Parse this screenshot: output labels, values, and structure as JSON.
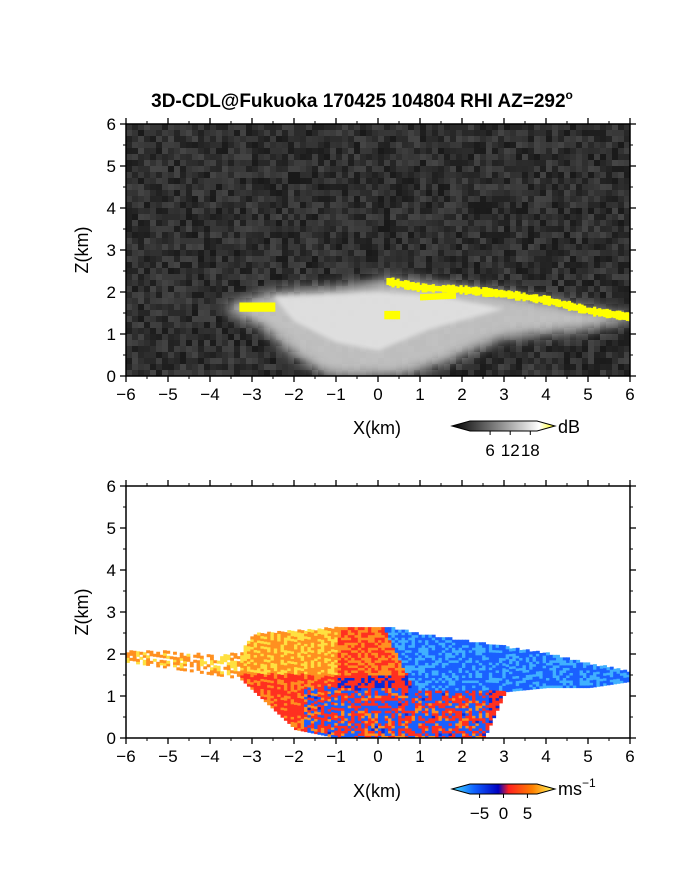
{
  "figure": {
    "title": "3D-CDL@Fukuoka 170425 104804 RHI AZ=292",
    "title_superscript": "o"
  },
  "chart_data": [
    {
      "type": "heatmap",
      "name": "backscatter",
      "xlabel": "X(km)",
      "ylabel": "Z(km)",
      "xlim": [
        -6,
        6
      ],
      "ylim": [
        0,
        6
      ],
      "xticks": [
        "−6",
        "−5",
        "−4",
        "−3",
        "−2",
        "−1",
        "0",
        "1",
        "2",
        "3",
        "4",
        "5",
        "6"
      ],
      "yticks": [
        "0",
        "1",
        "2",
        "3",
        "4",
        "5",
        "6"
      ],
      "grid": false,
      "colorbar": {
        "unit": "dB",
        "ticks": [
          6,
          12,
          18
        ],
        "tick_labels": [
          "6",
          "12",
          "18"
        ],
        "range": [
          0,
          20
        ],
        "colors": [
          "#000000",
          "#ffffff",
          "#ffff00"
        ]
      },
      "layer_top_km": [
        [
          -3.6,
          1.68
        ],
        [
          -2.5,
          2.0
        ],
        [
          -1.0,
          2.1
        ],
        [
          0.2,
          2.3
        ],
        [
          1.5,
          2.2
        ],
        [
          3.0,
          2.0
        ],
        [
          4.5,
          1.7
        ],
        [
          6.0,
          1.45
        ]
      ],
      "strong_echo_band": [
        [
          0.2,
          2.25
        ],
        [
          1.0,
          2.1
        ],
        [
          2.0,
          2.05
        ],
        [
          3.0,
          1.95
        ],
        [
          4.0,
          1.8
        ],
        [
          5.0,
          1.55
        ],
        [
          6.0,
          1.4
        ]
      ]
    },
    {
      "type": "heatmap",
      "name": "doppler_velocity",
      "xlabel": "X(km)",
      "ylabel": "Z(km)",
      "xlim": [
        -6,
        6
      ],
      "ylim": [
        0,
        6
      ],
      "xticks": [
        "−6",
        "−5",
        "−4",
        "−3",
        "−2",
        "−1",
        "0",
        "1",
        "2",
        "3",
        "4",
        "5",
        "6"
      ],
      "yticks": [
        "0",
        "1",
        "2",
        "3",
        "4",
        "5",
        "6"
      ],
      "grid": false,
      "colorbar": {
        "unit": "ms",
        "unit_superscript": "−1",
        "ticks": [
          -5,
          0,
          5
        ],
        "tick_labels": [
          "−5",
          "0",
          "5"
        ],
        "range": [
          -7,
          7
        ],
        "colors": [
          "#40e0ff",
          "#1060ff",
          "#0000c0",
          "#ff2020",
          "#ff8000",
          "#ffff60"
        ]
      },
      "velocity_regions": [
        {
          "x_range": [
            -6,
            -3.3
          ],
          "z_range": [
            1.4,
            2.1
          ],
          "velocity_ms": 4
        },
        {
          "x_range": [
            -3.3,
            0.3
          ],
          "z_range": [
            0.2,
            2.6
          ],
          "velocity_ms": 3
        },
        {
          "x_range": [
            0.3,
            6.0
          ],
          "z_range": [
            1.3,
            2.6
          ],
          "velocity_ms": -4
        },
        {
          "x_range": [
            -1.8,
            2.5
          ],
          "z_range": [
            0.0,
            1.2
          ],
          "velocity_ms": 1
        }
      ]
    }
  ]
}
